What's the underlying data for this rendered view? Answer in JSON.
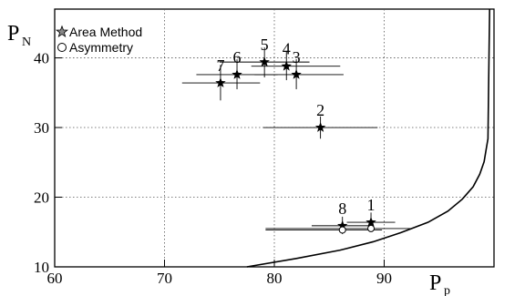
{
  "chart_data": {
    "type": "scatter",
    "xlabel": "P",
    "xlabel_sub": "p",
    "ylabel": "P",
    "ylabel_sub": "N",
    "xlim": [
      60,
      100
    ],
    "ylim": [
      10,
      47
    ],
    "xticks": [
      60,
      70,
      80,
      90
    ],
    "yticks": [
      10,
      20,
      30,
      40
    ],
    "grid": "dotted",
    "legend_position": "top-left",
    "legend": [
      {
        "symbol": "star",
        "label": "Area Method"
      },
      {
        "symbol": "circle",
        "label": "Asymmetry"
      }
    ],
    "series": [
      {
        "name": "Area Method",
        "marker": "star",
        "points": [
          {
            "label": "1",
            "x": 88.8,
            "y": 16.4,
            "xerr": [
              86.6,
              91.0
            ],
            "yerr": [
              15.2,
              17.8
            ]
          },
          {
            "label": "2",
            "x": 84.2,
            "y": 30.0,
            "xerr": [
              79.0,
              89.4
            ],
            "yerr": [
              28.4,
              31.6
            ]
          },
          {
            "label": "3",
            "x": 82.0,
            "y": 37.6,
            "xerr": [
              78.2,
              86.3
            ],
            "yerr": [
              35.5,
              39.8
            ]
          },
          {
            "label": "4",
            "x": 81.1,
            "y": 38.8,
            "xerr": [
              77.9,
              86.0
            ],
            "yerr": [
              36.8,
              41.0
            ]
          },
          {
            "label": "5",
            "x": 79.1,
            "y": 39.4,
            "xerr": [
              75.0,
              83.2
            ],
            "yerr": [
              37.2,
              41.5
            ]
          },
          {
            "label": "6",
            "x": 76.6,
            "y": 37.6,
            "xerr": [
              72.9,
              80.3
            ],
            "yerr": [
              35.5,
              39.8
            ]
          },
          {
            "label": "7",
            "x": 75.1,
            "y": 36.4,
            "xerr": [
              71.6,
              78.7
            ],
            "yerr": [
              33.9,
              39.0
            ]
          },
          {
            "label": "8",
            "x": 86.2,
            "y": 15.9,
            "xerr": [
              83.4,
              88.9
            ],
            "yerr": [
              14.7,
              17.2
            ]
          }
        ]
      },
      {
        "name": "Asymmetry",
        "marker": "circle",
        "points": [
          {
            "x": 88.8,
            "y": 15.5,
            "xerr": [
              79.2,
              92.4
            ],
            "yerr": [
              15.1,
              16.2
            ]
          },
          {
            "x": 86.2,
            "y": 15.3,
            "xerr": [
              79.2,
              89.8
            ],
            "yerr": [
              14.9,
              15.8
            ]
          }
        ]
      }
    ],
    "curve": {
      "x": [
        77.5,
        82,
        86,
        89,
        91.5,
        94,
        95.8,
        97.1,
        98.1,
        98.7,
        99.1,
        99.3,
        99.45,
        99.5,
        99.6
      ],
      "y": [
        10,
        11.2,
        12.4,
        13.6,
        14.9,
        16.4,
        18.0,
        19.7,
        21.5,
        23.3,
        25.1,
        27.0,
        28.4,
        35,
        47
      ]
    }
  }
}
